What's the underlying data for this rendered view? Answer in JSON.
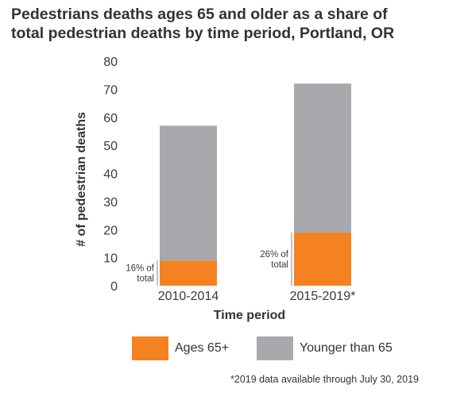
{
  "title_lines": [
    "Pedestrians deaths ages 65 and older as a share of",
    "total pedestrian deaths by time period, Portland, OR"
  ],
  "chart_data": {
    "type": "bar",
    "stacked": true,
    "categories": [
      "2010-2014",
      "2015-2019*"
    ],
    "series": [
      {
        "name": "Ages 65+",
        "values": [
          9,
          19
        ],
        "color": "#f58220"
      },
      {
        "name": "Younger than 65",
        "values": [
          48,
          53
        ],
        "color": "#a7a9ac"
      }
    ],
    "annotations": [
      {
        "category": "2010-2014",
        "lines": [
          "16% of",
          "total"
        ]
      },
      {
        "category": "2015-2019*",
        "lines": [
          "26% of",
          "total"
        ]
      }
    ],
    "title": "Pedestrians deaths ages 65 and older as a share of total pedestrian deaths by time period, Portland, OR",
    "xlabel": "Time period",
    "ylabel": "# of pedestrian deaths",
    "ylim": [
      0,
      80
    ],
    "yticks": [
      0,
      10,
      20,
      30,
      40,
      50,
      60,
      70,
      80
    ],
    "grid": false,
    "legend_position": "bottom"
  },
  "footnote": "*2019 data available through July 30, 2019"
}
